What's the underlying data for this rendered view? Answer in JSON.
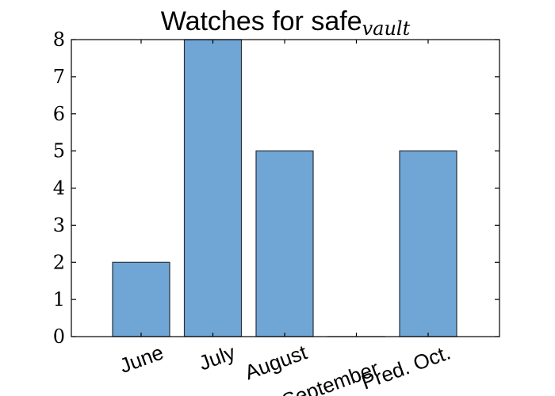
{
  "chart_data": {
    "type": "bar",
    "title_main": "Watches for safe",
    "title_sub": "vault",
    "categories": [
      "June",
      "July",
      "August",
      "September",
      "Pred. Oct."
    ],
    "values": [
      2,
      8,
      5,
      0,
      5
    ],
    "ylim": [
      0,
      8
    ],
    "yticks": [
      "0",
      "1",
      "2",
      "3",
      "4",
      "5",
      "6",
      "7",
      "8"
    ],
    "bar_color": "#6fa6d6",
    "grid": false
  }
}
